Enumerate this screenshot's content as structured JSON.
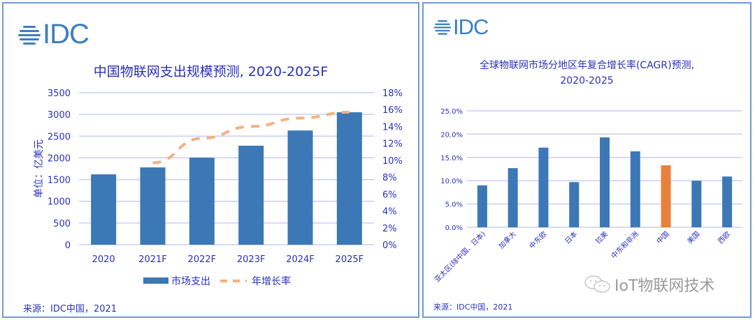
{
  "panels": {
    "left": {
      "logo_text": "IDC",
      "title": "中国物联网支出规模预测, 2020-2025F",
      "source": "来源：IDC中国，2021"
    },
    "right": {
      "logo_text": "IDC",
      "title_line1": "全球物联网市场分地区年复合增长率(CAGR)预测,",
      "title_line2": "2020-2025",
      "source": "来源：IDC中国，2021"
    }
  },
  "watermark": {
    "text": "IoT物联网技术",
    "icon": "wechat-icon"
  },
  "colors": {
    "bar_blue": "#3b78b5",
    "line_orange": "#f2b183",
    "highlight_orange": "#e8803a",
    "text_blue": "#2b2fb8",
    "grid": "#c9cdf5"
  },
  "chart_data": [
    {
      "type": "bar",
      "title": "中国物联网支出规模预测, 2020-2025F",
      "categories": [
        "2020",
        "2021F",
        "2022F",
        "2023F",
        "2024F",
        "2025F"
      ],
      "ylabel": "单位：亿美元",
      "ylim": [
        0,
        3500
      ],
      "yticks": [
        "0",
        "500",
        "1000",
        "1500",
        "2000",
        "2500",
        "3000",
        "3500"
      ],
      "y2lim": [
        0,
        18
      ],
      "y2ticks": [
        "0%",
        "2%",
        "4%",
        "6%",
        "8%",
        "10%",
        "12%",
        "14%",
        "16%",
        "18%"
      ],
      "grid": true,
      "legend_position": "bottom",
      "series": [
        {
          "name": "市场支出",
          "type": "bar",
          "axis": "left",
          "values": [
            1620,
            1780,
            2005,
            2280,
            2630,
            3050
          ]
        },
        {
          "name": "年增长率",
          "type": "line",
          "style": "dashed",
          "axis": "right",
          "values": [
            null,
            9.7,
            12.6,
            14.0,
            15.0,
            15.7
          ]
        }
      ]
    },
    {
      "type": "bar",
      "title": "全球物联网市场分地区年复合增长率(CAGR)预测, 2020-2025",
      "categories": [
        "亚太区(除中国、日本)",
        "加拿大",
        "中东欧",
        "日本",
        "拉美",
        "中东和非洲",
        "中国",
        "美国",
        "西欧"
      ],
      "values": [
        9.0,
        12.7,
        17.1,
        9.7,
        19.3,
        16.3,
        13.3,
        10.0,
        10.9
      ],
      "highlight": "中国",
      "ylim": [
        0,
        25
      ],
      "yticks": [
        "0.0%",
        "5.0%",
        "10.0%",
        "15.0%",
        "20.0%",
        "25.0%"
      ],
      "grid": true,
      "xlabel": "",
      "ylabel": ""
    }
  ]
}
